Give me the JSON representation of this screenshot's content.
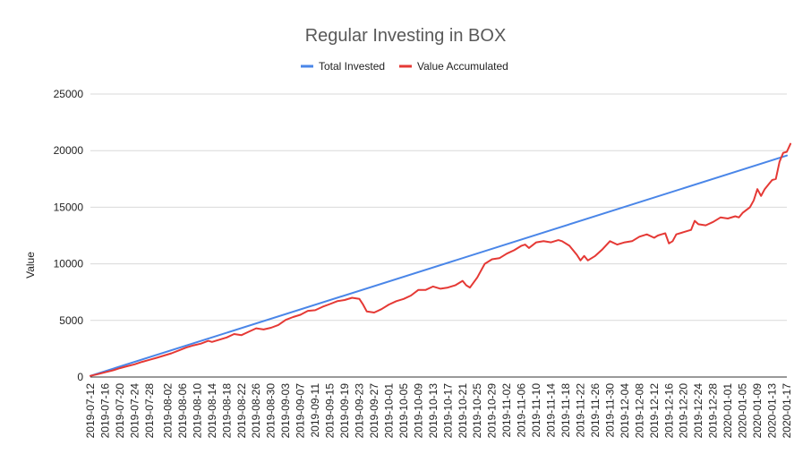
{
  "chart_data": {
    "type": "line",
    "title": "Regular Investing in BOX",
    "xlabel": "",
    "ylabel": "Value",
    "ylim": [
      0,
      25000
    ],
    "yticks": [
      0,
      5000,
      10000,
      15000,
      20000,
      25000
    ],
    "grid": true,
    "legend_position": "top",
    "xticks": [
      "2019-07-12",
      "2019-07-16",
      "2019-07-20",
      "2019-07-24",
      "2019-07-28",
      "2019-08-02",
      "2019-08-06",
      "2019-08-10",
      "2019-08-14",
      "2019-08-18",
      "2019-08-22",
      "2019-08-26",
      "2019-08-30",
      "2019-09-03",
      "2019-09-07",
      "2019-09-11",
      "2019-09-15",
      "2019-09-19",
      "2019-09-23",
      "2019-09-27",
      "2019-10-01",
      "2019-10-05",
      "2019-10-09",
      "2019-10-13",
      "2019-10-17",
      "2019-10-21",
      "2019-10-25",
      "2019-10-29",
      "2019-11-02",
      "2019-11-06",
      "2019-11-10",
      "2019-11-14",
      "2019-11-18",
      "2019-11-22",
      "2019-11-26",
      "2019-11-30",
      "2019-12-04",
      "2019-12-08",
      "2019-12-12",
      "2019-12-16",
      "2019-12-20",
      "2019-12-24",
      "2019-12-28",
      "2020-01-01",
      "2020-01-05",
      "2020-01-09",
      "2020-01-13",
      "2020-01-17"
    ],
    "series": [
      {
        "name": "Total Invested",
        "color": "#4a86e8",
        "points": [
          [
            "2019-07-12",
            100
          ],
          [
            "2019-07-13",
            203
          ]
        ]
      },
      {
        "name": "Value Accumulated",
        "color": "#e53935",
        "points": [
          [
            "2019-07-12",
            100
          ],
          [
            "2019-07-14",
            250
          ],
          [
            "2019-07-16",
            420
          ],
          [
            "2019-07-18",
            580
          ],
          [
            "2019-07-20",
            780
          ],
          [
            "2019-07-22",
            960
          ],
          [
            "2019-07-24",
            1120
          ],
          [
            "2019-07-26",
            1340
          ],
          [
            "2019-07-28",
            1520
          ],
          [
            "2019-07-30",
            1700
          ],
          [
            "2019-08-01",
            1900
          ],
          [
            "2019-08-03",
            2100
          ],
          [
            "2019-08-05",
            2350
          ],
          [
            "2019-08-07",
            2600
          ],
          [
            "2019-08-09",
            2800
          ],
          [
            "2019-08-11",
            2950
          ],
          [
            "2019-08-13",
            3200
          ],
          [
            "2019-08-14",
            3100
          ],
          [
            "2019-08-16",
            3300
          ],
          [
            "2019-08-18",
            3500
          ],
          [
            "2019-08-20",
            3800
          ],
          [
            "2019-08-22",
            3700
          ],
          [
            "2019-08-24",
            4000
          ],
          [
            "2019-08-26",
            4300
          ],
          [
            "2019-08-28",
            4200
          ],
          [
            "2019-08-30",
            4350
          ],
          [
            "2019-09-01",
            4600
          ],
          [
            "2019-09-03",
            5050
          ],
          [
            "2019-09-05",
            5300
          ],
          [
            "2019-09-07",
            5500
          ],
          [
            "2019-09-09",
            5850
          ],
          [
            "2019-09-11",
            5900
          ],
          [
            "2019-09-13",
            6200
          ],
          [
            "2019-09-15",
            6450
          ],
          [
            "2019-09-17",
            6700
          ],
          [
            "2019-09-19",
            6800
          ],
          [
            "2019-09-21",
            7000
          ],
          [
            "2019-09-23",
            6900
          ],
          [
            "2019-09-24",
            6400
          ],
          [
            "2019-09-25",
            5800
          ],
          [
            "2019-09-27",
            5700
          ],
          [
            "2019-09-29",
            6000
          ],
          [
            "2019-10-01",
            6400
          ],
          [
            "2019-10-03",
            6700
          ],
          [
            "2019-10-05",
            6900
          ],
          [
            "2019-10-07",
            7200
          ],
          [
            "2019-10-09",
            7700
          ],
          [
            "2019-10-11",
            7700
          ],
          [
            "2019-10-13",
            8000
          ],
          [
            "2019-10-15",
            7800
          ],
          [
            "2019-10-17",
            7900
          ],
          [
            "2019-10-19",
            8100
          ],
          [
            "2019-10-21",
            8500
          ],
          [
            "2019-10-22",
            8100
          ],
          [
            "2019-10-23",
            7900
          ],
          [
            "2019-10-25",
            8800
          ],
          [
            "2019-10-27",
            10000
          ],
          [
            "2019-10-29",
            10400
          ],
          [
            "2019-10-31",
            10500
          ],
          [
            "2019-11-02",
            10900
          ],
          [
            "2019-11-04",
            11200
          ],
          [
            "2019-11-06",
            11600
          ],
          [
            "2019-11-07",
            11700
          ],
          [
            "2019-11-08",
            11400
          ],
          [
            "2019-11-10",
            11900
          ],
          [
            "2019-11-12",
            12000
          ],
          [
            "2019-11-14",
            11900
          ],
          [
            "2019-11-16",
            12100
          ],
          [
            "2019-11-17",
            12000
          ],
          [
            "2019-11-19",
            11600
          ],
          [
            "2019-11-21",
            10800
          ],
          [
            "2019-11-22",
            10300
          ],
          [
            "2019-11-23",
            10700
          ],
          [
            "2019-11-24",
            10300
          ],
          [
            "2019-11-26",
            10700
          ],
          [
            "2019-11-28",
            11300
          ],
          [
            "2019-11-30",
            12000
          ],
          [
            "2019-12-02",
            11700
          ],
          [
            "2019-12-04",
            11900
          ],
          [
            "2019-12-06",
            12000
          ],
          [
            "2019-12-08",
            12400
          ],
          [
            "2019-12-10",
            12600
          ],
          [
            "2019-12-12",
            12300
          ],
          [
            "2019-12-13",
            12500
          ],
          [
            "2019-12-14",
            12600
          ],
          [
            "2019-12-15",
            12700
          ],
          [
            "2019-12-16",
            11800
          ],
          [
            "2019-12-17",
            12000
          ],
          [
            "2019-12-18",
            12600
          ],
          [
            "2019-12-20",
            12800
          ],
          [
            "2019-12-22",
            13000
          ],
          [
            "2019-12-23",
            13800
          ],
          [
            "2019-12-24",
            13500
          ],
          [
            "2019-12-26",
            13400
          ],
          [
            "2019-12-28",
            13700
          ],
          [
            "2019-12-30",
            14100
          ],
          [
            "2020-01-01",
            14000
          ],
          [
            "2020-01-03",
            14200
          ],
          [
            "2020-01-04",
            14100
          ],
          [
            "2020-01-05",
            14500
          ],
          [
            "2020-01-07",
            15000
          ],
          [
            "2020-01-08",
            15600
          ],
          [
            "2020-01-09",
            16600
          ],
          [
            "2020-01-10",
            16000
          ],
          [
            "2020-01-11",
            16600
          ],
          [
            "2020-01-12",
            17000
          ],
          [
            "2020-01-13",
            17400
          ],
          [
            "2020-01-14",
            17500
          ],
          [
            "2020-01-15",
            19000
          ],
          [
            "2020-01-16",
            19800
          ],
          [
            "2020-01-17",
            19900
          ],
          [
            "2020-01-18",
            20600
          ]
        ]
      }
    ]
  }
}
